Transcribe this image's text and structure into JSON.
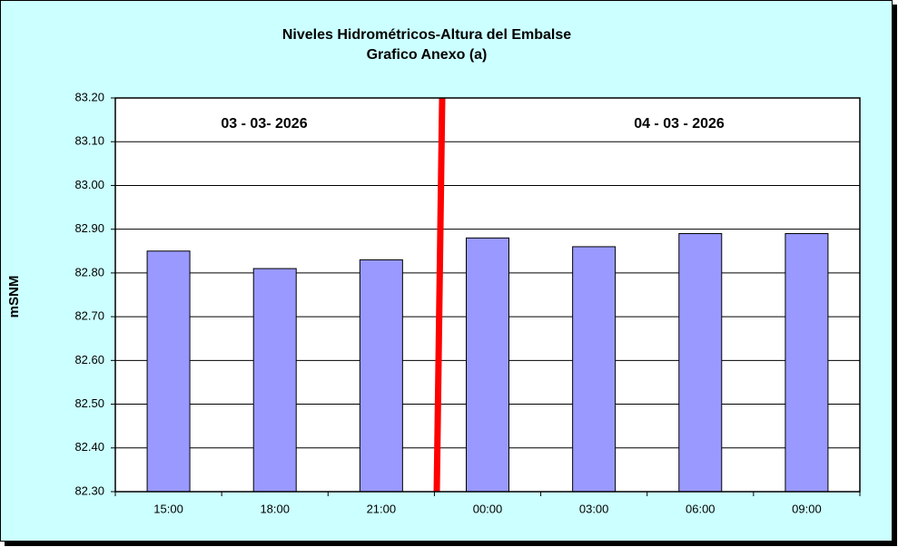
{
  "chart_data": {
    "type": "bar",
    "title": "Niveles Hidrométricos-Altura del Embalse",
    "subtitle": "Grafico Anexo (a)",
    "y_label": "mSNM",
    "annotations": [
      "03 - 03- 2026",
      "04 - 03 - 2026"
    ],
    "categories": [
      "15:00",
      "18:00",
      "21:00",
      "00:00",
      "03:00",
      "06:00",
      "09:00"
    ],
    "values": [
      82.85,
      82.81,
      82.83,
      82.88,
      82.86,
      82.89,
      82.89
    ],
    "color": "#9999ff",
    "ylim": [
      82.3,
      83.2
    ],
    "yticks": [
      {
        "value": 82.3,
        "label": "82.30"
      },
      {
        "value": 82.4,
        "label": "82.40"
      },
      {
        "value": 82.5,
        "label": "82.50"
      },
      {
        "value": 82.6,
        "label": "82.60"
      },
      {
        "value": 82.7,
        "label": "82.70"
      },
      {
        "value": 82.8,
        "label": "82.80"
      },
      {
        "value": 82.9,
        "label": "82.90"
      },
      {
        "value": 83.0,
        "label": "83.00"
      },
      {
        "value": 83.1,
        "label": "83.10"
      },
      {
        "value": 83.2,
        "label": "83.20"
      }
    ],
    "grid": true
  }
}
